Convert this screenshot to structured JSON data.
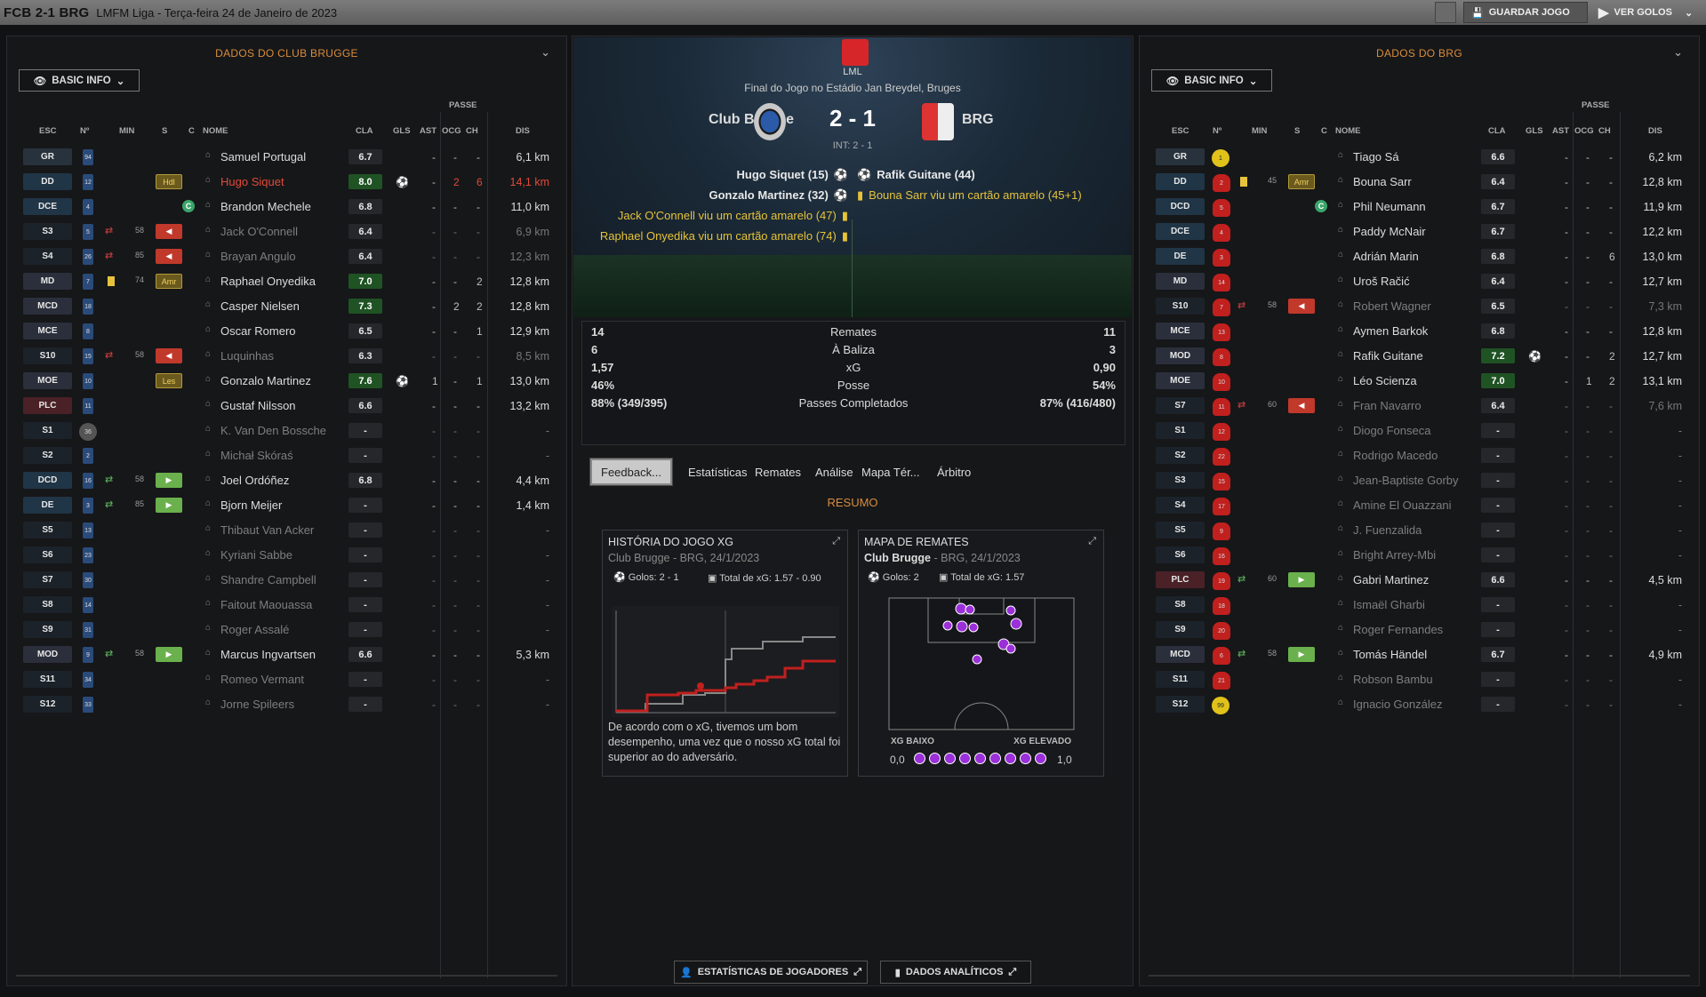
{
  "topbar": {
    "title": "FCB 2-1 BRG",
    "subtitle": "LMFM Liga - Terça-feira 24 de Janeiro de 2023",
    "save": "GUARDAR JOGO",
    "view_goals": "VER GOLOS"
  },
  "left": {
    "title": "DADOS DO CLUB BRUGGE",
    "basic_info": "BASIC INFO",
    "passe": "PASSE",
    "headers": {
      "esc": "ESC",
      "n": "Nº",
      "min": "MIN",
      "s": "S",
      "c": "C",
      "nome": "NOME",
      "cla": "CLA",
      "gls": "GLS",
      "ast": "AST",
      "ocg": "OCG",
      "ch": "CH",
      "dis": "DIS"
    },
    "players": [
      {
        "pos": "GR",
        "k": "gk",
        "num": "94",
        "min": "",
        "s": "",
        "badge": "",
        "c": "",
        "name": "Samuel Portugal",
        "nc": "",
        "cla": "6.7",
        "hi": false,
        "gls": "",
        "ast": "-",
        "ocg": "-",
        "ch": "-",
        "dis": "6,1 km"
      },
      {
        "pos": "DD",
        "k": "def",
        "num": "12",
        "min": "",
        "s": "",
        "badge": "Hdl",
        "c": "",
        "name": "Hugo Siquet",
        "nc": "red",
        "cla": "8.0",
        "hi": true,
        "gls": "ball",
        "ast": "-",
        "ocg": "2",
        "ch": "6",
        "dis": "14,1 km",
        "red": true
      },
      {
        "pos": "DCE",
        "k": "def",
        "num": "4",
        "min": "",
        "s": "",
        "badge": "",
        "c": "C",
        "name": "Brandon Mechele",
        "nc": "",
        "cla": "6.8",
        "hi": false,
        "gls": "",
        "ast": "-",
        "ocg": "-",
        "ch": "-",
        "dis": "11,0 km"
      },
      {
        "pos": "S3",
        "k": "sub",
        "num": "5",
        "min": "58",
        "s": "out",
        "badge": "red",
        "c": "",
        "name": "Jack O'Connell",
        "nc": "dim",
        "cla": "6.4",
        "hi": false,
        "gls": "",
        "ast": "-",
        "ocg": "-",
        "ch": "-",
        "dis": "6,9 km",
        "dim": true
      },
      {
        "pos": "S4",
        "k": "sub",
        "num": "26",
        "min": "85",
        "s": "out",
        "badge": "red",
        "c": "",
        "name": "Brayan Angulo",
        "nc": "dim",
        "cla": "6.4",
        "hi": false,
        "gls": "",
        "ast": "-",
        "ocg": "-",
        "ch": "-",
        "dis": "12,3 km",
        "dim": true
      },
      {
        "pos": "MD",
        "k": "mid",
        "num": "7",
        "min": "74",
        "s": "yc",
        "badge": "Amr",
        "c": "",
        "name": "Raphael Onyedika",
        "nc": "",
        "cla": "7.0",
        "hi": true,
        "gls": "",
        "ast": "-",
        "ocg": "-",
        "ch": "2",
        "dis": "12,8 km"
      },
      {
        "pos": "MCD",
        "k": "mid",
        "num": "18",
        "min": "",
        "s": "",
        "badge": "",
        "c": "",
        "name": "Casper Nielsen",
        "nc": "",
        "cla": "7.3",
        "hi": true,
        "gls": "",
        "ast": "-",
        "ocg": "2",
        "ch": "2",
        "dis": "12,8 km"
      },
      {
        "pos": "MCE",
        "k": "mid",
        "num": "8",
        "min": "",
        "s": "",
        "badge": "",
        "c": "",
        "name": "Oscar Romero",
        "nc": "",
        "cla": "6.5",
        "hi": false,
        "gls": "",
        "ast": "-",
        "ocg": "-",
        "ch": "1",
        "dis": "12,9 km"
      },
      {
        "pos": "S10",
        "k": "sub",
        "num": "15",
        "min": "58",
        "s": "out",
        "badge": "red",
        "c": "",
        "name": "Luquinhas",
        "nc": "dim",
        "cla": "6.3",
        "hi": false,
        "gls": "",
        "ast": "-",
        "ocg": "-",
        "ch": "-",
        "dis": "8,5 km",
        "dim": true
      },
      {
        "pos": "MOE",
        "k": "mid",
        "num": "10",
        "min": "",
        "s": "",
        "badge": "Les",
        "c": "",
        "name": "Gonzalo Martinez",
        "nc": "",
        "cla": "7.6",
        "hi": true,
        "gls": "ball",
        "ast": "1",
        "ocg": "-",
        "ch": "1",
        "dis": "13,0 km"
      },
      {
        "pos": "PLC",
        "k": "fwd",
        "num": "11",
        "min": "",
        "s": "",
        "badge": "",
        "c": "",
        "name": "Gustaf Nilsson",
        "nc": "",
        "cla": "6.6",
        "hi": false,
        "gls": "",
        "ast": "-",
        "ocg": "-",
        "ch": "-",
        "dis": "13,2 km"
      },
      {
        "pos": "S1",
        "k": "sub",
        "num": "36",
        "gk": true,
        "min": "",
        "s": "",
        "badge": "",
        "c": "",
        "name": "K. Van Den Bossche",
        "nc": "dim",
        "cla": "-",
        "hi": false,
        "gls": "",
        "ast": "-",
        "ocg": "-",
        "ch": "-",
        "dis": "-",
        "dim": true
      },
      {
        "pos": "S2",
        "k": "sub",
        "num": "2",
        "min": "",
        "s": "",
        "badge": "",
        "c": "",
        "name": "Michał Skóraś",
        "nc": "dim",
        "cla": "-",
        "hi": false,
        "gls": "",
        "ast": "-",
        "ocg": "-",
        "ch": "-",
        "dis": "-",
        "dim": true
      },
      {
        "pos": "DCD",
        "k": "def",
        "num": "16",
        "min": "58",
        "s": "in",
        "badge": "green",
        "c": "",
        "name": "Joel Ordóñez",
        "nc": "",
        "cla": "6.8",
        "hi": false,
        "gls": "",
        "ast": "-",
        "ocg": "-",
        "ch": "-",
        "dis": "4,4 km"
      },
      {
        "pos": "DE",
        "k": "def",
        "num": "3",
        "min": "85",
        "s": "in",
        "badge": "green",
        "c": "",
        "name": "Bjorn Meijer",
        "nc": "",
        "cla": "-",
        "hi": false,
        "gls": "",
        "ast": "-",
        "ocg": "-",
        "ch": "-",
        "dis": "1,4 km"
      },
      {
        "pos": "S5",
        "k": "sub",
        "num": "13",
        "min": "",
        "s": "",
        "badge": "",
        "c": "",
        "name": "Thibaut Van Acker",
        "nc": "dim",
        "cla": "-",
        "hi": false,
        "gls": "",
        "ast": "-",
        "ocg": "-",
        "ch": "-",
        "dis": "-",
        "dim": true
      },
      {
        "pos": "S6",
        "k": "sub",
        "num": "23",
        "min": "",
        "s": "",
        "badge": "",
        "c": "",
        "name": "Kyriani Sabbe",
        "nc": "dim",
        "cla": "-",
        "hi": false,
        "gls": "",
        "ast": "-",
        "ocg": "-",
        "ch": "-",
        "dis": "-",
        "dim": true
      },
      {
        "pos": "S7",
        "k": "sub",
        "num": "30",
        "min": "",
        "s": "",
        "badge": "",
        "c": "",
        "name": "Shandre Campbell",
        "nc": "dim",
        "cla": "-",
        "hi": false,
        "gls": "",
        "ast": "-",
        "ocg": "-",
        "ch": "-",
        "dis": "-",
        "dim": true
      },
      {
        "pos": "S8",
        "k": "sub",
        "num": "14",
        "min": "",
        "s": "",
        "badge": "",
        "c": "",
        "name": "Faitout Maouassa",
        "nc": "dim",
        "cla": "-",
        "hi": false,
        "gls": "",
        "ast": "-",
        "ocg": "-",
        "ch": "-",
        "dis": "-",
        "dim": true
      },
      {
        "pos": "S9",
        "k": "sub",
        "num": "31",
        "min": "",
        "s": "",
        "badge": "",
        "c": "",
        "name": "Roger Assalé",
        "nc": "dim",
        "cla": "-",
        "hi": false,
        "gls": "",
        "ast": "-",
        "ocg": "-",
        "ch": "-",
        "dis": "-",
        "dim": true
      },
      {
        "pos": "MOD",
        "k": "mid",
        "num": "9",
        "min": "58",
        "s": "in",
        "badge": "green",
        "c": "",
        "name": "Marcus Ingvartsen",
        "nc": "",
        "cla": "6.6",
        "hi": false,
        "gls": "",
        "ast": "-",
        "ocg": "-",
        "ch": "-",
        "dis": "5,3 km"
      },
      {
        "pos": "S11",
        "k": "sub",
        "num": "34",
        "min": "",
        "s": "",
        "badge": "",
        "c": "",
        "name": "Romeo Vermant",
        "nc": "dim",
        "cla": "-",
        "hi": false,
        "gls": "",
        "ast": "-",
        "ocg": "-",
        "ch": "-",
        "dis": "-",
        "dim": true
      },
      {
        "pos": "S12",
        "k": "sub",
        "num": "33",
        "min": "",
        "s": "",
        "badge": "",
        "c": "",
        "name": "Jorne Spileers",
        "nc": "dim",
        "cla": "-",
        "hi": false,
        "gls": "",
        "ast": "-",
        "ocg": "-",
        "ch": "-",
        "dis": "-",
        "dim": true
      }
    ]
  },
  "right": {
    "title": "DADOS DO BRG",
    "basic_info": "BASIC INFO",
    "passe": "PASSE",
    "headers": {
      "esc": "ESC",
      "n": "Nº",
      "min": "MIN",
      "s": "S",
      "c": "C",
      "nome": "NOME",
      "cla": "CLA",
      "gls": "GLS",
      "ast": "AST",
      "ocg": "OCG",
      "ch": "CH",
      "dis": "DIS"
    },
    "players": [
      {
        "pos": "GR",
        "k": "gk",
        "num": "1",
        "gk": true,
        "min": "",
        "s": "",
        "badge": "",
        "c": "",
        "name": "Tiago Sá",
        "nc": "",
        "cla": "6.6",
        "hi": false,
        "gls": "",
        "ast": "-",
        "ocg": "-",
        "ch": "-",
        "dis": "6,2 km"
      },
      {
        "pos": "DD",
        "k": "def",
        "num": "2",
        "min": "45",
        "s": "yc",
        "badge": "Amr",
        "c": "",
        "name": "Bouna Sarr",
        "nc": "",
        "cla": "6.4",
        "hi": false,
        "gls": "",
        "ast": "-",
        "ocg": "-",
        "ch": "-",
        "dis": "12,8 km"
      },
      {
        "pos": "DCD",
        "k": "def",
        "num": "5",
        "min": "",
        "s": "",
        "badge": "",
        "c": "C",
        "name": "Phil Neumann",
        "nc": "",
        "cla": "6.7",
        "hi": false,
        "gls": "",
        "ast": "-",
        "ocg": "-",
        "ch": "-",
        "dis": "11,9 km"
      },
      {
        "pos": "DCE",
        "k": "def",
        "num": "4",
        "min": "",
        "s": "",
        "badge": "",
        "c": "",
        "name": "Paddy McNair",
        "nc": "",
        "cla": "6.7",
        "hi": false,
        "gls": "",
        "ast": "-",
        "ocg": "-",
        "ch": "-",
        "dis": "12,2 km"
      },
      {
        "pos": "DE",
        "k": "def",
        "num": "3",
        "min": "",
        "s": "",
        "badge": "",
        "c": "",
        "name": "Adrián Marin",
        "nc": "",
        "cla": "6.8",
        "hi": false,
        "gls": "",
        "ast": "-",
        "ocg": "-",
        "ch": "6",
        "dis": "13,0 km"
      },
      {
        "pos": "MD",
        "k": "mid",
        "num": "14",
        "min": "",
        "s": "",
        "badge": "",
        "c": "",
        "name": "Uroš Račić",
        "nc": "",
        "cla": "6.4",
        "hi": false,
        "gls": "",
        "ast": "-",
        "ocg": "-",
        "ch": "-",
        "dis": "12,7 km"
      },
      {
        "pos": "S10",
        "k": "sub",
        "num": "7",
        "min": "58",
        "s": "out",
        "badge": "red",
        "c": "",
        "name": "Robert Wagner",
        "nc": "dim",
        "cla": "6.5",
        "hi": false,
        "gls": "",
        "ast": "-",
        "ocg": "-",
        "ch": "-",
        "dis": "7,3 km",
        "dim": true
      },
      {
        "pos": "MCE",
        "k": "mid",
        "num": "13",
        "min": "",
        "s": "",
        "badge": "",
        "c": "",
        "name": "Aymen Barkok",
        "nc": "",
        "cla": "6.8",
        "hi": false,
        "gls": "",
        "ast": "-",
        "ocg": "-",
        "ch": "-",
        "dis": "12,8 km"
      },
      {
        "pos": "MOD",
        "k": "mid",
        "num": "8",
        "min": "",
        "s": "",
        "badge": "",
        "c": "",
        "name": "Rafik Guitane",
        "nc": "",
        "cla": "7.2",
        "hi": true,
        "gls": "ball",
        "ast": "-",
        "ocg": "-",
        "ch": "2",
        "dis": "12,7 km"
      },
      {
        "pos": "MOE",
        "k": "mid",
        "num": "10",
        "min": "",
        "s": "",
        "badge": "",
        "c": "",
        "name": "Léo Scienza",
        "nc": "",
        "cla": "7.0",
        "hi": true,
        "gls": "",
        "ast": "-",
        "ocg": "1",
        "ch": "2",
        "dis": "13,1 km"
      },
      {
        "pos": "S7",
        "k": "sub",
        "num": "11",
        "min": "60",
        "s": "out",
        "badge": "red",
        "c": "",
        "name": "Fran Navarro",
        "nc": "dim",
        "cla": "6.4",
        "hi": false,
        "gls": "",
        "ast": "-",
        "ocg": "-",
        "ch": "-",
        "dis": "7,6 km",
        "dim": true
      },
      {
        "pos": "S1",
        "k": "sub",
        "num": "12",
        "min": "",
        "s": "",
        "badge": "",
        "c": "",
        "name": "Diogo Fonseca",
        "nc": "dim",
        "cla": "-",
        "hi": false,
        "gls": "",
        "ast": "-",
        "ocg": "-",
        "ch": "-",
        "dis": "-",
        "dim": true
      },
      {
        "pos": "S2",
        "k": "sub",
        "num": "22",
        "min": "",
        "s": "",
        "badge": "",
        "c": "",
        "name": "Rodrigo Macedo",
        "nc": "dim",
        "cla": "-",
        "hi": false,
        "gls": "",
        "ast": "-",
        "ocg": "-",
        "ch": "-",
        "dis": "-",
        "dim": true
      },
      {
        "pos": "S3",
        "k": "sub",
        "num": "15",
        "min": "",
        "s": "",
        "badge": "",
        "c": "",
        "name": "Jean-Baptiste Gorby",
        "nc": "dim",
        "cla": "-",
        "hi": false,
        "gls": "",
        "ast": "-",
        "ocg": "-",
        "ch": "-",
        "dis": "-",
        "dim": true
      },
      {
        "pos": "S4",
        "k": "sub",
        "num": "17",
        "min": "",
        "s": "",
        "badge": "",
        "c": "",
        "name": "Amine El Ouazzani",
        "nc": "dim",
        "cla": "-",
        "hi": false,
        "gls": "",
        "ast": "-",
        "ocg": "-",
        "ch": "-",
        "dis": "-",
        "dim": true
      },
      {
        "pos": "S5",
        "k": "sub",
        "num": "9",
        "min": "",
        "s": "",
        "badge": "",
        "c": "",
        "name": "J. Fuenzalida",
        "nc": "dim",
        "cla": "-",
        "hi": false,
        "gls": "",
        "ast": "-",
        "ocg": "-",
        "ch": "-",
        "dis": "-",
        "dim": true
      },
      {
        "pos": "S6",
        "k": "sub",
        "num": "16",
        "min": "",
        "s": "",
        "badge": "",
        "c": "",
        "name": "Bright Arrey-Mbi",
        "nc": "dim",
        "cla": "-",
        "hi": false,
        "gls": "",
        "ast": "-",
        "ocg": "-",
        "ch": "-",
        "dis": "-",
        "dim": true
      },
      {
        "pos": "PLC",
        "k": "fwd",
        "num": "19",
        "min": "60",
        "s": "in",
        "badge": "green",
        "c": "",
        "name": "Gabri Martinez",
        "nc": "",
        "cla": "6.6",
        "hi": false,
        "gls": "",
        "ast": "-",
        "ocg": "-",
        "ch": "-",
        "dis": "4,5 km"
      },
      {
        "pos": "S8",
        "k": "sub",
        "num": "18",
        "min": "",
        "s": "",
        "badge": "",
        "c": "",
        "name": "Ismaël Gharbi",
        "nc": "dim",
        "cla": "-",
        "hi": false,
        "gls": "",
        "ast": "-",
        "ocg": "-",
        "ch": "-",
        "dis": "-",
        "dim": true
      },
      {
        "pos": "S9",
        "k": "sub",
        "num": "20",
        "min": "",
        "s": "",
        "badge": "",
        "c": "",
        "name": "Roger Fernandes",
        "nc": "dim",
        "cla": "-",
        "hi": false,
        "gls": "",
        "ast": "-",
        "ocg": "-",
        "ch": "-",
        "dis": "-",
        "dim": true
      },
      {
        "pos": "MCD",
        "k": "mid",
        "num": "6",
        "min": "58",
        "s": "in",
        "badge": "green",
        "c": "",
        "name": "Tomás Händel",
        "nc": "",
        "cla": "6.7",
        "hi": false,
        "gls": "",
        "ast": "-",
        "ocg": "-",
        "ch": "-",
        "dis": "4,9 km"
      },
      {
        "pos": "S11",
        "k": "sub",
        "num": "21",
        "min": "",
        "s": "",
        "badge": "",
        "c": "",
        "name": "Robson Bambu",
        "nc": "dim",
        "cla": "-",
        "hi": false,
        "gls": "",
        "ast": "-",
        "ocg": "-",
        "ch": "-",
        "dis": "-",
        "dim": true
      },
      {
        "pos": "S12",
        "k": "sub",
        "num": "99",
        "gk": true,
        "min": "",
        "s": "",
        "badge": "",
        "c": "",
        "name": "Ignacio González",
        "nc": "dim",
        "cla": "-",
        "hi": false,
        "gls": "",
        "ast": "-",
        "ocg": "-",
        "ch": "-",
        "dis": "-",
        "dim": true
      }
    ]
  },
  "match": {
    "league": "LML",
    "final": "Final do Jogo no Estádio Jan Breydel, Bruges",
    "home": "Club Brugge",
    "away": "BRG",
    "score": "2 - 1",
    "int": "INT: 2 - 1",
    "events_left": [
      {
        "text": "Hugo Siquet (15)",
        "type": "goal"
      },
      {
        "text": "Gonzalo Martinez (32)",
        "type": "goal"
      },
      {
        "text": "Jack O'Connell viu um cartão amarelo (47)",
        "type": "yellow"
      },
      {
        "text": "Raphael Onyedika viu um cartão amarelo (74)",
        "type": "yellow"
      }
    ],
    "events_right": [
      {
        "text": "Rafik Guitane (44)",
        "type": "goal"
      },
      {
        "text": "Bouna Sarr viu um cartão amarelo (45+1)",
        "type": "yellow"
      }
    ]
  },
  "stats": [
    {
      "home": "14",
      "label": "Remates",
      "away": "11"
    },
    {
      "home": "6",
      "label": "À Baliza",
      "away": "3"
    },
    {
      "home": "1,57",
      "label": "xG",
      "away": "0,90"
    },
    {
      "home": "46%",
      "label": "Posse",
      "away": "54%"
    },
    {
      "home": "88% (349/395)",
      "label": "Passes Completados",
      "away": "87% (416/480)"
    }
  ],
  "tabs": [
    "Feedback...",
    "Estatísticas",
    "Remates",
    "Análise",
    "Mapa Tér...",
    "Árbitro"
  ],
  "resumo": "RESUMO",
  "xg_card": {
    "title": "HISTÓRIA DO JOGO XG",
    "subtitle": "Club Brugge - BRG, 24/1/2023",
    "goals": "Golos: 2 - 1",
    "total": "Total de xG: 1.57 - 0.90",
    "text": "De acordo com o xG, tivemos um bom desempenho, uma vez que o nosso xG total foi superior ao do adversário."
  },
  "shot_card": {
    "title": "MAPA DE REMATES",
    "team": "Club Brugge",
    "subtitle": " - BRG, 24/1/2023",
    "goals": "Golos: 2",
    "total": "Total de xG: 1.57",
    "low": "XG BAIXO",
    "high": "XG ELEVADO",
    "min": "0,0",
    "max": "1,0"
  },
  "bottom": {
    "players_btn": "ESTATÍSTICAS DE JOGADORES",
    "analytics_btn": "DADOS ANALÍTICOS"
  },
  "colors": {
    "accent": "#d98c3c",
    "rating_high": "#1f5324",
    "sub_out": "#c0392b",
    "sub_in": "#6ab04c",
    "yellow": "#e6c33a",
    "shot": "#9b2fd9"
  }
}
